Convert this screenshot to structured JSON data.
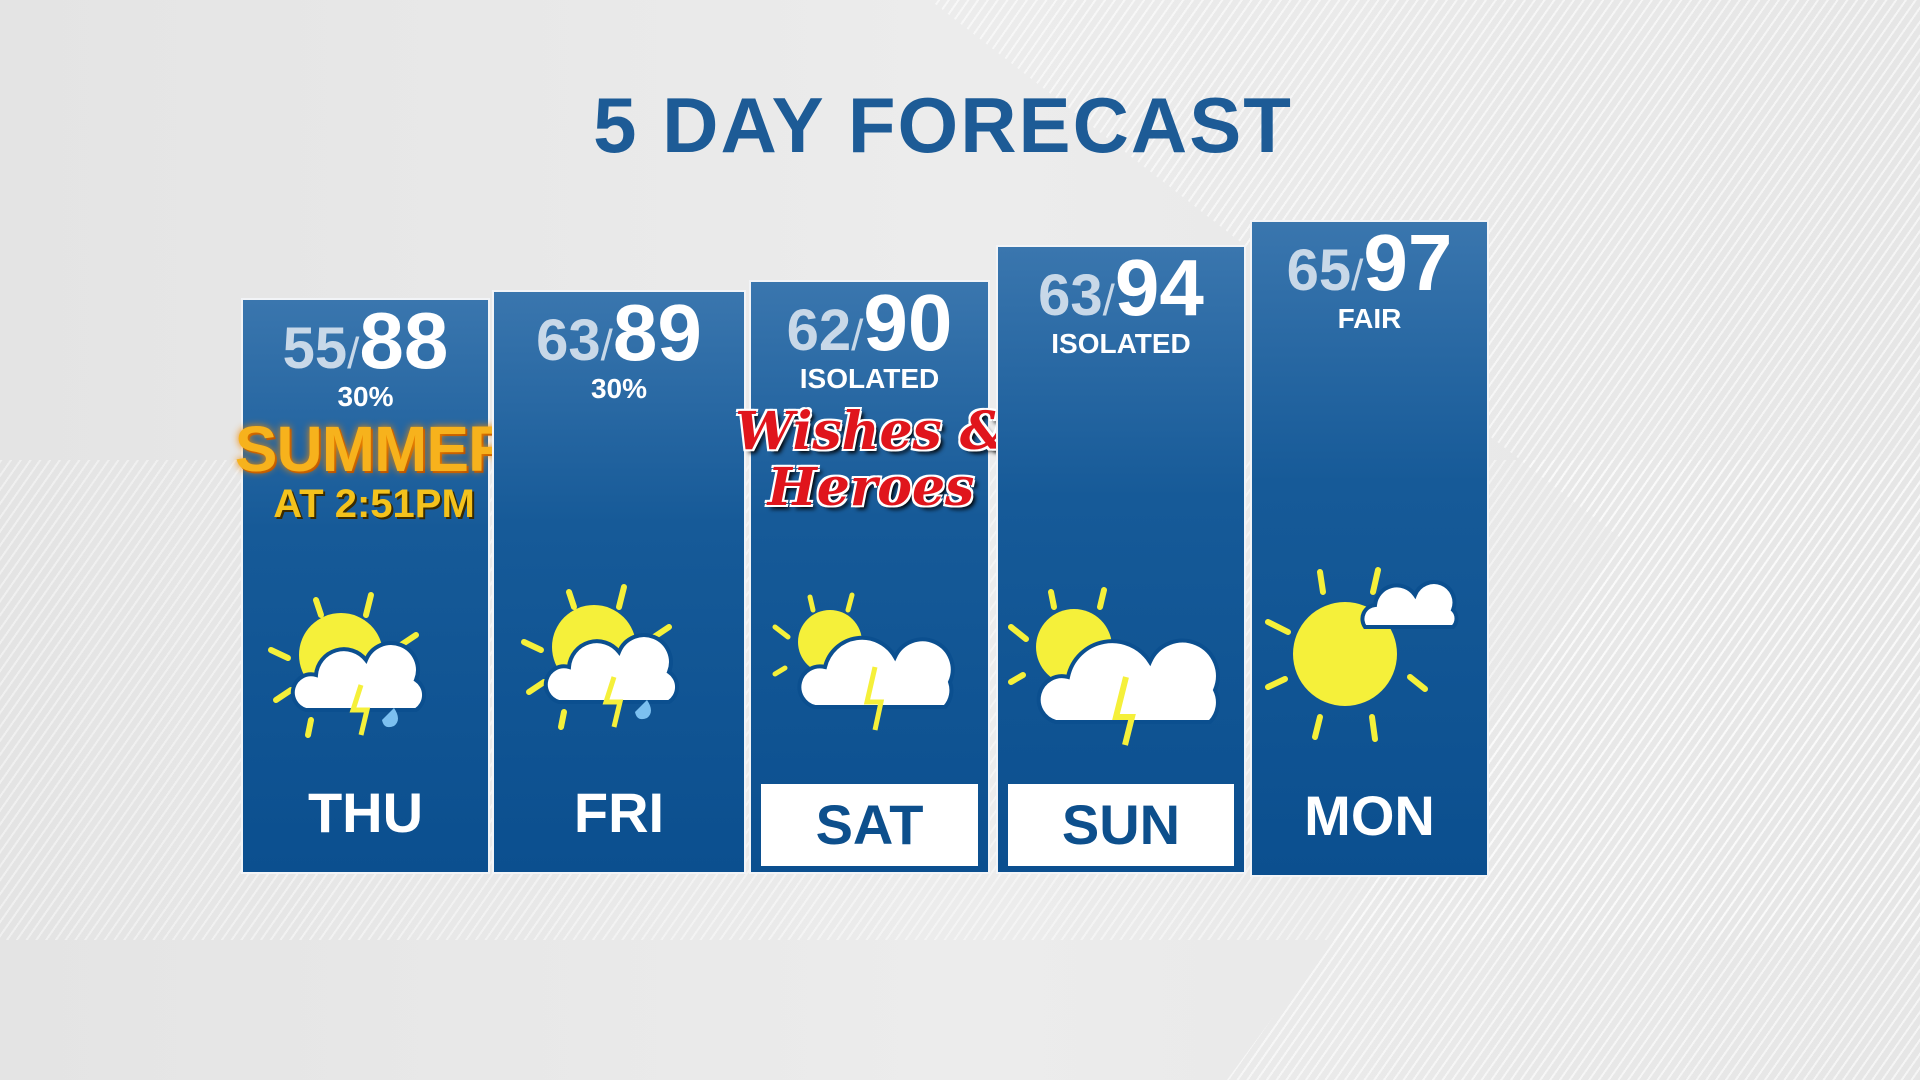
{
  "title": "5 DAY FORECAST",
  "days": [
    {
      "day": "THU",
      "low": "55",
      "high": "88",
      "note": "30%",
      "icon": "partly-sunny-thunderstorm-rain-icon",
      "highlighted": false
    },
    {
      "day": "FRI",
      "low": "63",
      "high": "89",
      "note": "30%",
      "icon": "partly-sunny-thunderstorm-rain-icon",
      "highlighted": false
    },
    {
      "day": "SAT",
      "low": "62",
      "high": "90",
      "note": "ISOLATED",
      "icon": "partly-sunny-thunderstorm-icon",
      "highlighted": true
    },
    {
      "day": "SUN",
      "low": "63",
      "high": "94",
      "note": "ISOLATED",
      "icon": "partly-sunny-thunderstorm-icon",
      "highlighted": true
    },
    {
      "day": "MON",
      "low": "65",
      "high": "97",
      "note": "FAIR",
      "icon": "mostly-sunny-icon",
      "highlighted": false
    }
  ],
  "summer_badge": {
    "line1": "SUMMER",
    "line2": "AT 2:51PM"
  },
  "event_badge": {
    "line1": "Wishes &",
    "line2": "Heroes"
  },
  "colors": {
    "title": "#1d5b96",
    "panel": "#0b4f8f",
    "sun": "#f5f03a",
    "rain": "#7cc0f0"
  }
}
